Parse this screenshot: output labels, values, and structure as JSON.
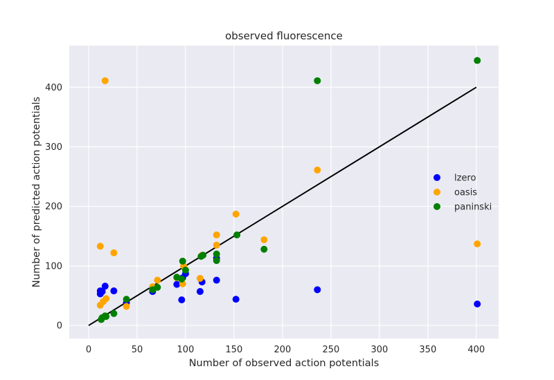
{
  "chart_data": {
    "type": "scatter",
    "title": "observed fluorescence",
    "xlabel": "Number of observed action potentials",
    "ylabel": "Number of predicted action potentials",
    "xlim": [
      -20,
      423
    ],
    "ylim": [
      -22,
      470
    ],
    "xticks": [
      0,
      50,
      100,
      150,
      200,
      250,
      300,
      350,
      400
    ],
    "yticks": [
      0,
      100,
      200,
      300,
      400
    ],
    "grid": true,
    "legend_position": "center-right",
    "series": [
      {
        "name": "lzero",
        "color": "#0000ff",
        "points": [
          [
            12,
            58
          ],
          [
            12,
            53
          ],
          [
            14,
            57
          ],
          [
            17,
            66
          ],
          [
            26,
            58
          ],
          [
            39,
            38
          ],
          [
            66,
            57
          ],
          [
            91,
            69
          ],
          [
            96,
            43
          ],
          [
            97,
            80
          ],
          [
            100,
            87
          ],
          [
            115,
            57
          ],
          [
            117,
            73
          ],
          [
            132,
            76
          ],
          [
            132,
            113
          ],
          [
            152,
            44
          ],
          [
            236,
            60
          ],
          [
            401,
            36
          ]
        ]
      },
      {
        "name": "oasis",
        "color": "#ffa500",
        "points": [
          [
            17,
            411
          ],
          [
            12,
            133
          ],
          [
            26,
            122
          ],
          [
            12,
            34
          ],
          [
            15,
            40
          ],
          [
            18,
            45
          ],
          [
            39,
            32
          ],
          [
            66,
            65
          ],
          [
            71,
            76
          ],
          [
            91,
            80
          ],
          [
            97,
            70
          ],
          [
            98,
            100
          ],
          [
            115,
            79
          ],
          [
            117,
            118
          ],
          [
            132,
            152
          ],
          [
            132,
            135
          ],
          [
            152,
            187
          ],
          [
            181,
            144
          ],
          [
            236,
            261
          ],
          [
            401,
            137
          ]
        ]
      },
      {
        "name": "paninski",
        "color": "#008000",
        "points": [
          [
            13,
            10
          ],
          [
            14,
            13
          ],
          [
            17,
            16
          ],
          [
            18,
            15
          ],
          [
            26,
            20
          ],
          [
            39,
            44
          ],
          [
            66,
            60
          ],
          [
            71,
            64
          ],
          [
            91,
            81
          ],
          [
            96,
            78
          ],
          [
            97,
            108
          ],
          [
            100,
            93
          ],
          [
            116,
            116
          ],
          [
            118,
            118
          ],
          [
            132,
            109
          ],
          [
            132,
            120
          ],
          [
            153,
            152
          ],
          [
            181,
            128
          ],
          [
            236,
            411
          ],
          [
            401,
            445
          ]
        ]
      }
    ],
    "reference_line": {
      "color": "#000000",
      "from": [
        0,
        0
      ],
      "to": [
        400,
        400
      ]
    }
  }
}
